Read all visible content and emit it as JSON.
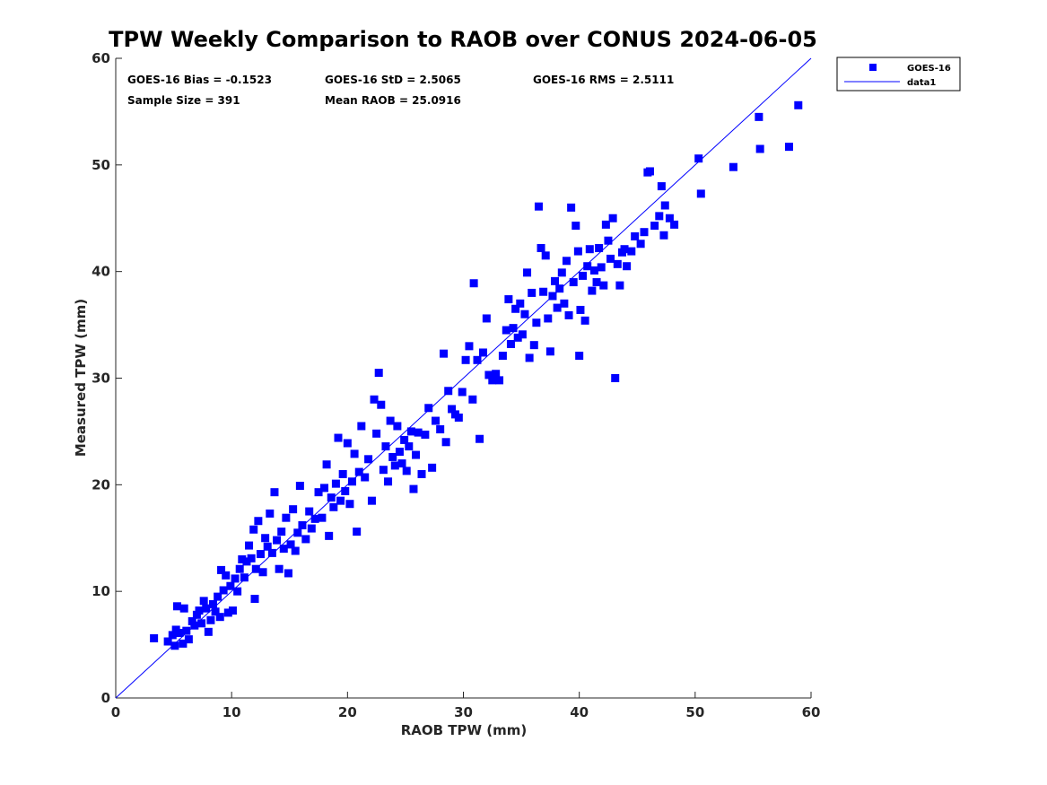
{
  "chart_data": {
    "type": "scatter",
    "title": "TPW Weekly Comparison to RAOB over CONUS 2024-06-05",
    "xlabel": "RAOB TPW (mm)",
    "ylabel": "Measured TPW (mm)",
    "xlim": [
      0,
      60
    ],
    "ylim": [
      0,
      60
    ],
    "xticks": [
      "0",
      "10",
      "20",
      "30",
      "40",
      "50",
      "60"
    ],
    "yticks": [
      "0",
      "10",
      "20",
      "30",
      "40",
      "50",
      "60"
    ],
    "grid": false,
    "legend_position": "outside-top-right",
    "stats": {
      "bias": "GOES-16 Bias = -0.1523",
      "std": "GOES-16 StD = 2.5065",
      "rms": "GOES-16 RMS = 2.5111",
      "sample_size": "Sample Size = 391",
      "mean_raob": "Mean RAOB = 25.0916"
    },
    "legend": [
      "GOES-16",
      "data1"
    ],
    "line": {
      "name": "data1",
      "x": [
        0,
        60
      ],
      "y": [
        0,
        60
      ],
      "color": "#0000ff"
    },
    "series": [
      {
        "name": "GOES-16",
        "color": "#0000ff",
        "points": [
          [
            3.3,
            5.6
          ],
          [
            4.5,
            5.3
          ],
          [
            4.9,
            5.9
          ],
          [
            5.1,
            4.9
          ],
          [
            5.2,
            6.4
          ],
          [
            5.3,
            8.6
          ],
          [
            5.5,
            6.1
          ],
          [
            5.8,
            5.1
          ],
          [
            5.9,
            8.4
          ],
          [
            6.1,
            6.3
          ],
          [
            6.3,
            5.5
          ],
          [
            6.6,
            7.2
          ],
          [
            6.8,
            6.8
          ],
          [
            7.0,
            7.8
          ],
          [
            7.2,
            8.2
          ],
          [
            7.4,
            7.0
          ],
          [
            7.6,
            9.1
          ],
          [
            7.8,
            8.4
          ],
          [
            8.0,
            6.2
          ],
          [
            8.2,
            7.3
          ],
          [
            8.4,
            8.8
          ],
          [
            8.6,
            8.1
          ],
          [
            8.8,
            9.5
          ],
          [
            9.0,
            7.6
          ],
          [
            9.1,
            12.0
          ],
          [
            9.3,
            10.1
          ],
          [
            9.5,
            11.5
          ],
          [
            9.7,
            8.0
          ],
          [
            9.9,
            10.5
          ],
          [
            10.1,
            8.2
          ],
          [
            10.3,
            11.2
          ],
          [
            10.5,
            10.0
          ],
          [
            10.7,
            12.1
          ],
          [
            10.9,
            13.0
          ],
          [
            11.1,
            11.3
          ],
          [
            11.3,
            12.8
          ],
          [
            11.5,
            14.3
          ],
          [
            11.7,
            13.1
          ],
          [
            11.9,
            15.8
          ],
          [
            12.0,
            9.3
          ],
          [
            12.1,
            12.1
          ],
          [
            12.3,
            16.6
          ],
          [
            12.5,
            13.5
          ],
          [
            12.7,
            11.8
          ],
          [
            12.9,
            15.0
          ],
          [
            13.1,
            14.2
          ],
          [
            13.3,
            17.3
          ],
          [
            13.5,
            13.6
          ],
          [
            13.7,
            19.3
          ],
          [
            13.9,
            14.8
          ],
          [
            14.1,
            12.1
          ],
          [
            14.3,
            15.6
          ],
          [
            14.5,
            14.0
          ],
          [
            14.7,
            16.9
          ],
          [
            14.9,
            11.7
          ],
          [
            15.1,
            14.4
          ],
          [
            15.3,
            17.7
          ],
          [
            15.5,
            13.8
          ],
          [
            15.7,
            15.5
          ],
          [
            15.9,
            19.9
          ],
          [
            16.1,
            16.2
          ],
          [
            16.4,
            14.9
          ],
          [
            16.7,
            17.5
          ],
          [
            16.9,
            15.9
          ],
          [
            17.2,
            16.8
          ],
          [
            17.5,
            19.3
          ],
          [
            17.8,
            16.9
          ],
          [
            18.0,
            19.7
          ],
          [
            18.2,
            21.9
          ],
          [
            18.4,
            15.2
          ],
          [
            18.6,
            18.8
          ],
          [
            18.8,
            17.9
          ],
          [
            19.0,
            20.1
          ],
          [
            19.2,
            24.4
          ],
          [
            19.4,
            18.5
          ],
          [
            19.6,
            21.0
          ],
          [
            19.8,
            19.4
          ],
          [
            20.0,
            23.9
          ],
          [
            20.2,
            18.2
          ],
          [
            20.4,
            20.3
          ],
          [
            20.6,
            22.9
          ],
          [
            20.8,
            15.6
          ],
          [
            21.0,
            21.2
          ],
          [
            21.2,
            25.5
          ],
          [
            21.5,
            20.7
          ],
          [
            21.8,
            22.4
          ],
          [
            22.1,
            18.5
          ],
          [
            22.3,
            28.0
          ],
          [
            22.5,
            24.8
          ],
          [
            22.7,
            30.5
          ],
          [
            22.9,
            27.5
          ],
          [
            23.1,
            21.4
          ],
          [
            23.3,
            23.6
          ],
          [
            23.5,
            20.3
          ],
          [
            23.7,
            26.0
          ],
          [
            23.9,
            22.6
          ],
          [
            24.1,
            21.8
          ],
          [
            24.3,
            25.5
          ],
          [
            24.5,
            23.1
          ],
          [
            24.7,
            22.0
          ],
          [
            24.9,
            24.2
          ],
          [
            25.1,
            21.3
          ],
          [
            25.3,
            23.6
          ],
          [
            25.5,
            25.0
          ],
          [
            25.7,
            19.6
          ],
          [
            25.9,
            22.8
          ],
          [
            26.1,
            24.9
          ],
          [
            26.4,
            21.0
          ],
          [
            26.7,
            24.7
          ],
          [
            27.0,
            27.2
          ],
          [
            27.3,
            21.6
          ],
          [
            27.6,
            26.0
          ],
          [
            28.0,
            25.2
          ],
          [
            28.3,
            32.3
          ],
          [
            28.5,
            24.0
          ],
          [
            28.7,
            28.8
          ],
          [
            29.0,
            27.1
          ],
          [
            29.3,
            26.6
          ],
          [
            29.6,
            26.3
          ],
          [
            29.9,
            28.7
          ],
          [
            30.2,
            31.7
          ],
          [
            30.5,
            33.0
          ],
          [
            30.8,
            28.0
          ],
          [
            30.9,
            38.9
          ],
          [
            31.2,
            31.7
          ],
          [
            31.4,
            24.3
          ],
          [
            31.7,
            32.4
          ],
          [
            32.0,
            35.6
          ],
          [
            32.2,
            30.3
          ],
          [
            32.5,
            29.8
          ],
          [
            32.8,
            30.4
          ],
          [
            33.1,
            29.8
          ],
          [
            33.4,
            32.1
          ],
          [
            33.7,
            34.5
          ],
          [
            33.9,
            37.4
          ],
          [
            34.1,
            33.2
          ],
          [
            34.3,
            34.7
          ],
          [
            34.5,
            36.5
          ],
          [
            34.7,
            33.8
          ],
          [
            34.9,
            37.0
          ],
          [
            35.1,
            34.1
          ],
          [
            35.3,
            36.0
          ],
          [
            35.5,
            39.9
          ],
          [
            35.7,
            31.9
          ],
          [
            35.9,
            38.0
          ],
          [
            36.1,
            33.1
          ],
          [
            36.3,
            35.2
          ],
          [
            36.5,
            46.1
          ],
          [
            36.7,
            42.2
          ],
          [
            36.9,
            38.1
          ],
          [
            37.1,
            41.5
          ],
          [
            37.3,
            35.6
          ],
          [
            37.5,
            32.5
          ],
          [
            37.7,
            37.7
          ],
          [
            37.9,
            39.1
          ],
          [
            38.1,
            36.6
          ],
          [
            38.3,
            38.4
          ],
          [
            38.5,
            39.9
          ],
          [
            38.7,
            37.0
          ],
          [
            38.9,
            41.0
          ],
          [
            39.1,
            35.9
          ],
          [
            39.3,
            46.0
          ],
          [
            39.5,
            39.0
          ],
          [
            39.7,
            44.3
          ],
          [
            39.9,
            41.9
          ],
          [
            40.0,
            32.1
          ],
          [
            40.1,
            36.4
          ],
          [
            40.3,
            39.6
          ],
          [
            40.5,
            35.4
          ],
          [
            40.7,
            40.5
          ],
          [
            40.9,
            42.1
          ],
          [
            41.1,
            38.2
          ],
          [
            41.3,
            40.1
          ],
          [
            41.5,
            39.0
          ],
          [
            41.7,
            42.2
          ],
          [
            41.9,
            40.4
          ],
          [
            42.1,
            38.7
          ],
          [
            42.3,
            44.4
          ],
          [
            42.5,
            42.9
          ],
          [
            42.7,
            41.2
          ],
          [
            42.9,
            45.0
          ],
          [
            43.1,
            30.0
          ],
          [
            43.3,
            40.7
          ],
          [
            43.5,
            38.7
          ],
          [
            43.7,
            41.8
          ],
          [
            43.9,
            42.1
          ],
          [
            44.1,
            40.5
          ],
          [
            44.5,
            41.9
          ],
          [
            44.8,
            43.3
          ],
          [
            45.3,
            42.6
          ],
          [
            45.6,
            43.7
          ],
          [
            45.9,
            49.3
          ],
          [
            46.1,
            49.4
          ],
          [
            46.5,
            44.3
          ],
          [
            46.9,
            45.2
          ],
          [
            47.1,
            48.0
          ],
          [
            47.3,
            43.4
          ],
          [
            47.4,
            46.2
          ],
          [
            47.8,
            45.0
          ],
          [
            48.2,
            44.4
          ],
          [
            50.3,
            50.6
          ],
          [
            50.5,
            47.3
          ],
          [
            53.3,
            49.8
          ],
          [
            55.5,
            54.5
          ],
          [
            55.6,
            51.5
          ],
          [
            58.1,
            51.7
          ],
          [
            58.9,
            55.6
          ]
        ]
      }
    ]
  }
}
